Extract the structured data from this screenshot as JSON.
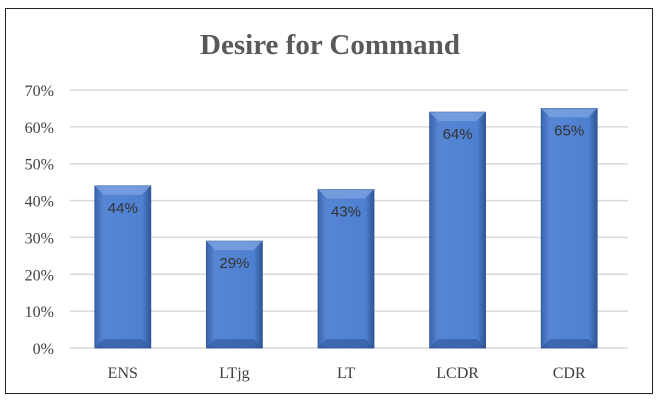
{
  "chart_data": {
    "type": "bar",
    "title": "Desire for Command",
    "categories": [
      "ENS",
      "LTjg",
      "LT",
      "LCDR",
      "CDR"
    ],
    "values": [
      44,
      29,
      43,
      64,
      65
    ],
    "data_labels": [
      "44%",
      "29%",
      "43%",
      "64%",
      "65%"
    ],
    "ylim": [
      0,
      70
    ],
    "y_ticks": [
      "0%",
      "10%",
      "20%",
      "30%",
      "40%",
      "50%",
      "60%",
      "70%"
    ],
    "xlabel": "",
    "ylabel": "",
    "grid": true,
    "legend": "none",
    "colors": {
      "bar": "#4a78c8",
      "bar_dark": "#2f5597",
      "grid": "#d9d9d9",
      "title": "#595959",
      "text": "#404040"
    }
  }
}
